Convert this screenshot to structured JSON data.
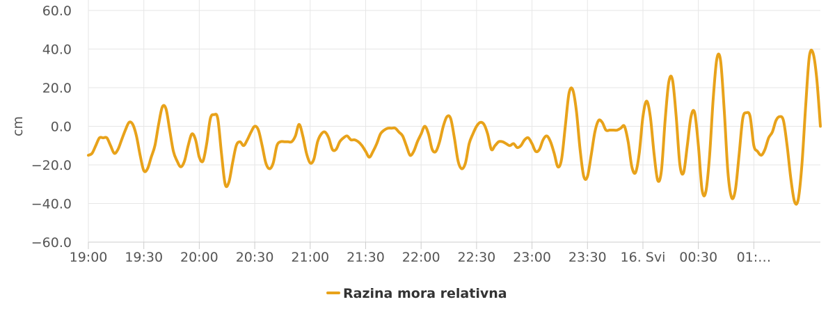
{
  "chart_data": {
    "type": "line",
    "ylabel": "cm",
    "ylim": [
      -60,
      60
    ],
    "y_ticks": [
      "60.0",
      "40.0",
      "20.0",
      "0.0",
      "−20.0",
      "−40.0",
      "−60.0"
    ],
    "x_ticks": [
      "19:00",
      "19:30",
      "20:00",
      "20:30",
      "21:00",
      "21:30",
      "22:00",
      "22:30",
      "23:00",
      "23:30",
      "16. Svi",
      "00:30",
      "01:…"
    ],
    "grid": true,
    "legend_position": "bottom",
    "series": [
      {
        "name": "Razina mora relativna",
        "color": "#E8A21A",
        "points": [
          [
            0,
            -15
          ],
          [
            1,
            -14
          ],
          [
            2,
            -10
          ],
          [
            3,
            -6
          ],
          [
            4,
            -6
          ],
          [
            5,
            -6
          ],
          [
            6,
            -10
          ],
          [
            7,
            -14
          ],
          [
            8,
            -12
          ],
          [
            9,
            -7
          ],
          [
            10,
            -2
          ],
          [
            11,
            2
          ],
          [
            12,
            1
          ],
          [
            13,
            -5
          ],
          [
            14,
            -15
          ],
          [
            15,
            -23
          ],
          [
            16,
            -22
          ],
          [
            17,
            -16
          ],
          [
            18,
            -10
          ],
          [
            19,
            1
          ],
          [
            20,
            10
          ],
          [
            21,
            9
          ],
          [
            22,
            -2
          ],
          [
            23,
            -13
          ],
          [
            24,
            -18
          ],
          [
            25,
            -21
          ],
          [
            26,
            -18
          ],
          [
            27,
            -10
          ],
          [
            28,
            -4
          ],
          [
            29,
            -7
          ],
          [
            30,
            -16
          ],
          [
            31,
            -18
          ],
          [
            32,
            -9
          ],
          [
            33,
            4
          ],
          [
            34,
            6
          ],
          [
            35,
            4
          ],
          [
            36,
            -14
          ],
          [
            37,
            -30
          ],
          [
            38,
            -29
          ],
          [
            39,
            -19
          ],
          [
            40,
            -10
          ],
          [
            41,
            -8
          ],
          [
            42,
            -10
          ],
          [
            43,
            -7
          ],
          [
            44,
            -3
          ],
          [
            45,
            0
          ],
          [
            46,
            -2
          ],
          [
            47,
            -10
          ],
          [
            48,
            -19
          ],
          [
            49,
            -22
          ],
          [
            50,
            -19
          ],
          [
            51,
            -10
          ],
          [
            52,
            -8
          ],
          [
            53,
            -8
          ],
          [
            54,
            -8
          ],
          [
            55,
            -8
          ],
          [
            56,
            -5
          ],
          [
            57,
            1
          ],
          [
            58,
            -5
          ],
          [
            59,
            -14
          ],
          [
            60,
            -19
          ],
          [
            61,
            -17
          ],
          [
            62,
            -8
          ],
          [
            63,
            -4
          ],
          [
            64,
            -3
          ],
          [
            65,
            -6
          ],
          [
            66,
            -12
          ],
          [
            67,
            -12
          ],
          [
            68,
            -8
          ],
          [
            69,
            -6
          ],
          [
            70,
            -5
          ],
          [
            71,
            -7
          ],
          [
            72,
            -7
          ],
          [
            73,
            -8
          ],
          [
            74,
            -10
          ],
          [
            75,
            -13
          ],
          [
            76,
            -16
          ],
          [
            77,
            -13
          ],
          [
            78,
            -9
          ],
          [
            79,
            -4
          ],
          [
            80,
            -2
          ],
          [
            81,
            -1
          ],
          [
            82,
            -1
          ],
          [
            83,
            -1
          ],
          [
            84,
            -3
          ],
          [
            85,
            -5
          ],
          [
            86,
            -10
          ],
          [
            87,
            -15
          ],
          [
            88,
            -13
          ],
          [
            89,
            -8
          ],
          [
            90,
            -4
          ],
          [
            91,
            0
          ],
          [
            92,
            -4
          ],
          [
            93,
            -12
          ],
          [
            94,
            -13
          ],
          [
            95,
            -8
          ],
          [
            96,
            0
          ],
          [
            97,
            5
          ],
          [
            98,
            4
          ],
          [
            99,
            -6
          ],
          [
            100,
            -18
          ],
          [
            101,
            -22
          ],
          [
            102,
            -19
          ],
          [
            103,
            -9
          ],
          [
            104,
            -4
          ],
          [
            105,
            0
          ],
          [
            106,
            2
          ],
          [
            107,
            1
          ],
          [
            108,
            -4
          ],
          [
            109,
            -12
          ],
          [
            110,
            -10
          ],
          [
            111,
            -8
          ],
          [
            112,
            -8
          ],
          [
            113,
            -9
          ],
          [
            114,
            -10
          ],
          [
            115,
            -9
          ],
          [
            116,
            -11
          ],
          [
            117,
            -10
          ],
          [
            118,
            -7
          ],
          [
            119,
            -6
          ],
          [
            120,
            -9
          ],
          [
            121,
            -13
          ],
          [
            122,
            -12
          ],
          [
            123,
            -7
          ],
          [
            124,
            -5
          ],
          [
            125,
            -8
          ],
          [
            126,
            -14
          ],
          [
            127,
            -21
          ],
          [
            128,
            -17
          ],
          [
            129,
            0
          ],
          [
            130,
            17
          ],
          [
            131,
            19
          ],
          [
            132,
            8
          ],
          [
            133,
            -12
          ],
          [
            134,
            -26
          ],
          [
            135,
            -26
          ],
          [
            136,
            -15
          ],
          [
            137,
            -3
          ],
          [
            138,
            3
          ],
          [
            139,
            2
          ],
          [
            140,
            -2
          ],
          [
            141,
            -2
          ],
          [
            142,
            -2
          ],
          [
            143,
            -2
          ],
          [
            144,
            -1
          ],
          [
            145,
            0
          ],
          [
            146,
            -8
          ],
          [
            147,
            -21
          ],
          [
            148,
            -24
          ],
          [
            149,
            -14
          ],
          [
            150,
            5
          ],
          [
            151,
            13
          ],
          [
            152,
            5
          ],
          [
            153,
            -14
          ],
          [
            154,
            -28
          ],
          [
            155,
            -23
          ],
          [
            156,
            3
          ],
          [
            157,
            23
          ],
          [
            158,
            24
          ],
          [
            159,
            5
          ],
          [
            160,
            -20
          ],
          [
            161,
            -24
          ],
          [
            162,
            -10
          ],
          [
            163,
            5
          ],
          [
            164,
            7
          ],
          [
            165,
            -10
          ],
          [
            166,
            -33
          ],
          [
            167,
            -34
          ],
          [
            168,
            -16
          ],
          [
            169,
            14
          ],
          [
            170,
            35
          ],
          [
            171,
            34
          ],
          [
            172,
            8
          ],
          [
            173,
            -24
          ],
          [
            174,
            -37
          ],
          [
            175,
            -33
          ],
          [
            176,
            -15
          ],
          [
            177,
            4
          ],
          [
            178,
            7
          ],
          [
            179,
            5
          ],
          [
            180,
            -10
          ],
          [
            181,
            -13
          ],
          [
            182,
            -15
          ],
          [
            183,
            -12
          ],
          [
            184,
            -6
          ],
          [
            185,
            -3
          ],
          [
            186,
            3
          ],
          [
            187,
            5
          ],
          [
            188,
            3
          ],
          [
            189,
            -10
          ],
          [
            190,
            -27
          ],
          [
            191,
            -39
          ],
          [
            192,
            -38
          ],
          [
            193,
            -20
          ],
          [
            194,
            10
          ],
          [
            195,
            36
          ],
          [
            196,
            38
          ],
          [
            197,
            25
          ],
          [
            198,
            0
          ]
        ]
      }
    ]
  }
}
